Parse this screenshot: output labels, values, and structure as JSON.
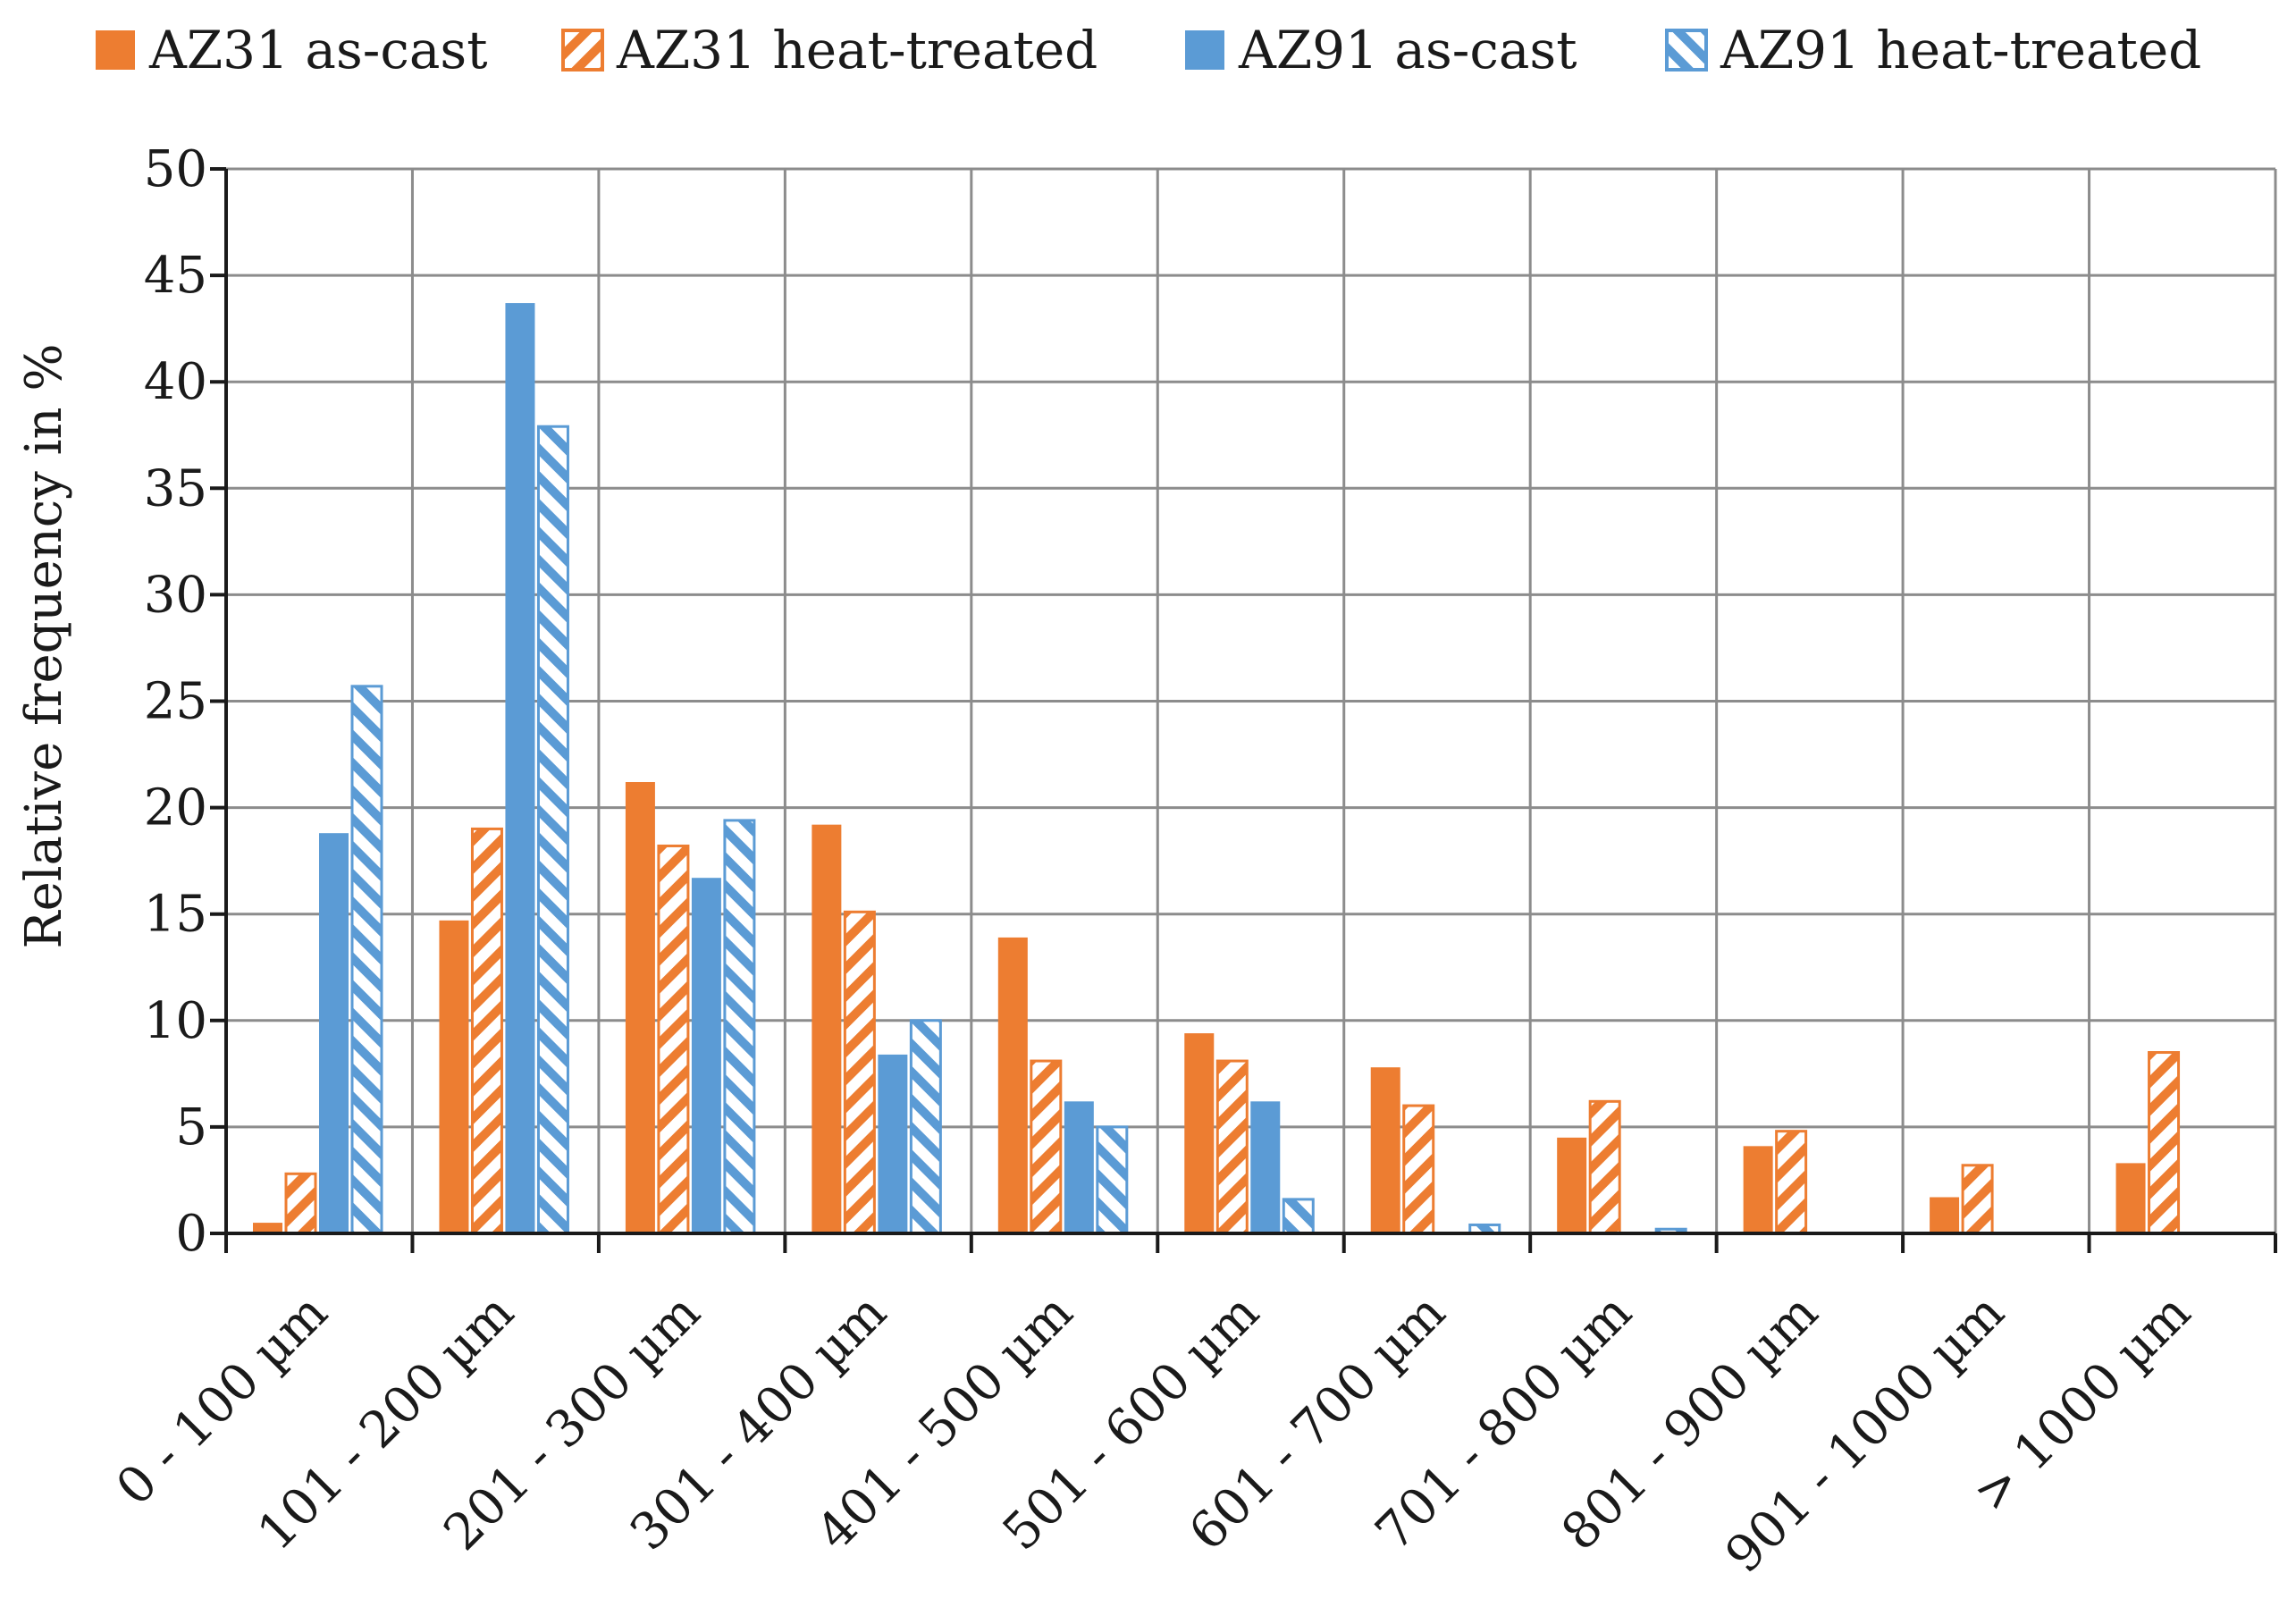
{
  "chart_data": {
    "type": "bar",
    "title": "",
    "xlabel": "",
    "ylabel": "Relative frequency in %",
    "ylim": [
      0,
      50
    ],
    "ytick_step": 5,
    "grid": true,
    "legend_position": "top",
    "categories": [
      "0 - 100 µm",
      "101 - 200 µm",
      "201 - 300 µm",
      "301 - 400 µm",
      "401 - 500 µm",
      "501 - 600 µm",
      "601 - 700 µm",
      "701 - 800 µm",
      "801 - 900 µm",
      "901 - 1000 µm",
      "> 1000 µm"
    ],
    "series": [
      {
        "name": "AZ31 as-cast",
        "color": "#ED7D31",
        "style": "solid",
        "values": [
          0.5,
          14.7,
          21.2,
          19.2,
          13.9,
          9.4,
          7.8,
          4.5,
          4.1,
          1.7,
          3.3
        ]
      },
      {
        "name": "AZ31 heat-treated",
        "color": "#ED7D31",
        "style": "hatched",
        "values": [
          2.8,
          19.0,
          18.2,
          15.1,
          8.1,
          8.1,
          6.0,
          6.2,
          4.8,
          3.2,
          8.5
        ]
      },
      {
        "name": "AZ91 as-cast",
        "color": "#5B9BD5",
        "style": "solid",
        "values": [
          18.8,
          43.7,
          16.7,
          8.4,
          6.2,
          6.2,
          0.0,
          0.0,
          0.0,
          0.0,
          0.0
        ]
      },
      {
        "name": "AZ91 heat-treated",
        "color": "#5B9BD5",
        "style": "hatched",
        "values": [
          25.7,
          37.9,
          19.4,
          10.0,
          5.0,
          1.6,
          0.4,
          0.2,
          0.0,
          0.0,
          0.0
        ]
      }
    ]
  }
}
